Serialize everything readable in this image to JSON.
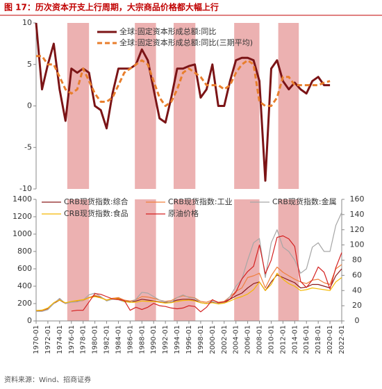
{
  "title": "图 17：历次资本开支上行周期，大宗商品价格都大幅上行",
  "source": "资料来源：Wind、招商证券",
  "chart_data": [
    {
      "type": "line",
      "highlight_ranges": [
        [
          1975.3,
          1979
        ],
        [
          1986.8,
          1990.4
        ],
        [
          1993.4,
          1997.1
        ],
        [
          2003.7,
          2008
        ],
        [
          2011.2,
          2014.7
        ]
      ],
      "x": [
        1970,
        1971,
        1972,
        1973,
        1974,
        1975,
        1976,
        1977,
        1978,
        1979,
        1980,
        1981,
        1982,
        1983,
        1984,
        1985,
        1986,
        1987,
        1988,
        1989,
        1990,
        1991,
        1992,
        1993,
        1994,
        1995,
        1996,
        1997,
        1998,
        1999,
        2000,
        2001,
        2002,
        2003,
        2004,
        2005,
        2006,
        2007,
        2008,
        2009,
        2010,
        2011,
        2012,
        2013,
        2014,
        2015,
        2016,
        2017,
        2018,
        2019,
        2020
      ],
      "xlim": [
        1970,
        2022
      ],
      "ylim": [
        -10,
        10
      ],
      "yticks": [
        -10,
        -5,
        0,
        5,
        10
      ],
      "series": [
        {
          "name": "全球:固定资本形成总额:同比",
          "color": "#7b1416",
          "dash": false,
          "values": [
            10,
            2,
            5,
            7.5,
            2,
            -1.8,
            4.5,
            4,
            4.5,
            4,
            0,
            -0.5,
            -2.7,
            1.5,
            4.5,
            4.5,
            4.5,
            5,
            6.8,
            5.5,
            2,
            -1.5,
            -2,
            1,
            4.5,
            4.5,
            4.8,
            5,
            1,
            2,
            5,
            0,
            0,
            3,
            5.5,
            5.8,
            5.8,
            5.5,
            3,
            -9,
            4.5,
            5.5,
            3,
            2,
            2.8,
            2,
            1.5,
            3,
            3.5,
            2.5,
            2.5
          ]
        },
        {
          "name": "全球:固定资本形成总额:同比(三期平均)",
          "color": "#e87e2c",
          "dash": true,
          "values": [
            6,
            6,
            5,
            5,
            3.5,
            2,
            1.5,
            2,
            4.5,
            3,
            1.5,
            0.5,
            0.5,
            1,
            2.5,
            4,
            4.5,
            5,
            5.5,
            5,
            3,
            1,
            0,
            0.5,
            2,
            4,
            4.5,
            4,
            3.5,
            2.5,
            2.5,
            2.5,
            2,
            2.5,
            4,
            5,
            5.5,
            5,
            0.5,
            0,
            0,
            1,
            3.5,
            3.5,
            2.5,
            2.5,
            2.5,
            2.5,
            2.5,
            2.8,
            3
          ]
        }
      ]
    },
    {
      "type": "line",
      "highlight_ranges": [
        [
          1975.3,
          1979
        ],
        [
          1986.8,
          1990.4
        ],
        [
          1993.4,
          1997.1
        ],
        [
          2003.7,
          2008
        ],
        [
          2011.2,
          2014.7
        ]
      ],
      "x": [
        1970,
        1971,
        1972,
        1973,
        1974,
        1975,
        1976,
        1977,
        1978,
        1979,
        1980,
        1981,
        1982,
        1983,
        1984,
        1985,
        1986,
        1987,
        1988,
        1989,
        1990,
        1991,
        1992,
        1993,
        1994,
        1995,
        1996,
        1997,
        1998,
        1999,
        2000,
        2001,
        2002,
        2003,
        2004,
        2005,
        2006,
        2007,
        2008,
        2009,
        2010,
        2011,
        2012,
        2013,
        2014,
        2015,
        2016,
        2017,
        2018,
        2019,
        2020,
        2021,
        2022
      ],
      "xlim": [
        1970,
        2022
      ],
      "xticks": [
        {
          "value": 1970,
          "label": "1970-01"
        },
        {
          "value": 1972,
          "label": "1972-01"
        },
        {
          "value": 1974,
          "label": "1974-01"
        },
        {
          "value": 1976,
          "label": "1976-01"
        },
        {
          "value": 1978,
          "label": "1978-01"
        },
        {
          "value": 1980,
          "label": "1980-01"
        },
        {
          "value": 1982,
          "label": "1982-01"
        },
        {
          "value": 1984,
          "label": "1984-01"
        },
        {
          "value": 1986,
          "label": "1986-01"
        },
        {
          "value": 1988,
          "label": "1988-01"
        },
        {
          "value": 1990,
          "label": "1990-01"
        },
        {
          "value": 1992,
          "label": "1992-01"
        },
        {
          "value": 1994,
          "label": "1994-01"
        },
        {
          "value": 1996,
          "label": "1996-01"
        },
        {
          "value": 1998,
          "label": "1998-01"
        },
        {
          "value": 2000,
          "label": "2000-01"
        },
        {
          "value": 2002,
          "label": "2002-01"
        },
        {
          "value": 2004,
          "label": "2004-01"
        },
        {
          "value": 2006,
          "label": "2006-01"
        },
        {
          "value": 2008,
          "label": "2008-01"
        },
        {
          "value": 2010,
          "label": "2010-01"
        },
        {
          "value": 2012,
          "label": "2012-01"
        },
        {
          "value": 2014,
          "label": "2014-01"
        },
        {
          "value": 2016,
          "label": "2016-01"
        },
        {
          "value": 2018,
          "label": "2018-01"
        },
        {
          "value": 2020,
          "label": "2020-01"
        },
        {
          "value": 2022,
          "label": "2022-01"
        }
      ],
      "ylim": [
        0,
        1400
      ],
      "yticks": [
        0,
        200,
        400,
        600,
        800,
        1000,
        1200,
        1400
      ],
      "y2lim": [
        0,
        160
      ],
      "y2ticks": [
        0,
        20,
        40,
        60,
        80,
        100,
        120,
        140,
        160
      ],
      "series": [
        {
          "name": "CRB现货指数:综合",
          "color": "#8b1a1a",
          "values": [
            120,
            120,
            140,
            200,
            240,
            200,
            220,
            230,
            240,
            270,
            290,
            270,
            240,
            260,
            260,
            230,
            220,
            230,
            250,
            240,
            230,
            220,
            210,
            220,
            240,
            250,
            250,
            240,
            210,
            200,
            220,
            200,
            210,
            250,
            290,
            320,
            380,
            430,
            450,
            350,
            450,
            530,
            500,
            470,
            440,
            380,
            390,
            420,
            420,
            400,
            380,
            520,
            600
          ]
        },
        {
          "name": "CRB现货指数:工业",
          "color": "#f07f3c",
          "values": [
            110,
            115,
            135,
            210,
            250,
            200,
            220,
            225,
            235,
            270,
            295,
            275,
            240,
            260,
            270,
            240,
            230,
            245,
            280,
            275,
            260,
            240,
            225,
            235,
            270,
            290,
            275,
            265,
            225,
            215,
            240,
            215,
            225,
            280,
            340,
            380,
            500,
            520,
            550,
            380,
            520,
            620,
            560,
            520,
            480,
            450,
            430,
            470,
            480,
            440,
            420,
            600,
            650
          ]
        },
        {
          "name": "CRB现货指数:金属",
          "color": "#a6a6a6",
          "values": [
            110,
            110,
            130,
            200,
            260,
            200,
            215,
            220,
            240,
            300,
            320,
            280,
            230,
            250,
            245,
            220,
            215,
            250,
            330,
            320,
            280,
            240,
            220,
            215,
            270,
            300,
            270,
            260,
            210,
            200,
            225,
            200,
            210,
            280,
            400,
            480,
            700,
            900,
            950,
            500,
            900,
            1050,
            850,
            800,
            700,
            550,
            600,
            850,
            900,
            800,
            800,
            1100,
            1250
          ]
        },
        {
          "name": "CRB现货指数:食品",
          "color": "#f5b800",
          "values": [
            120,
            125,
            150,
            210,
            240,
            210,
            225,
            235,
            245,
            265,
            280,
            265,
            240,
            255,
            255,
            225,
            215,
            215,
            230,
            225,
            225,
            215,
            205,
            210,
            225,
            235,
            240,
            230,
            210,
            200,
            210,
            195,
            205,
            230,
            260,
            280,
            310,
            360,
            450,
            350,
            420,
            550,
            480,
            430,
            400,
            350,
            360,
            380,
            370,
            360,
            350,
            450,
            500
          ]
        },
        {
          "name": "原油价格",
          "color": "#d42020",
          "axis": "y2",
          "values": [
            null,
            null,
            null,
            null,
            null,
            null,
            13,
            14,
            14,
            25,
            36,
            35,
            32,
            29,
            28,
            27,
            14,
            18,
            15,
            18,
            23,
            20,
            19,
            17,
            16,
            17,
            20,
            19,
            12,
            18,
            28,
            24,
            25,
            29,
            38,
            55,
            65,
            72,
            100,
            62,
            80,
            110,
            112,
            108,
            98,
            52,
            44,
            54,
            71,
            64,
            42,
            70,
            90
          ]
        }
      ]
    }
  ]
}
